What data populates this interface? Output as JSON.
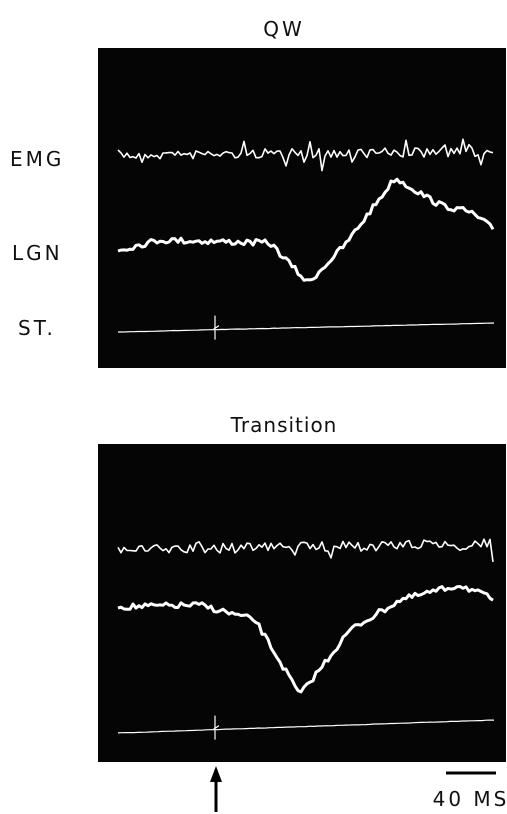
{
  "panels": [
    {
      "title": "QW",
      "traces": [
        "EMG",
        "LGN",
        "ST."
      ]
    },
    {
      "title": "Transition"
    }
  ],
  "scale_bar": {
    "label": "40 MS"
  }
}
